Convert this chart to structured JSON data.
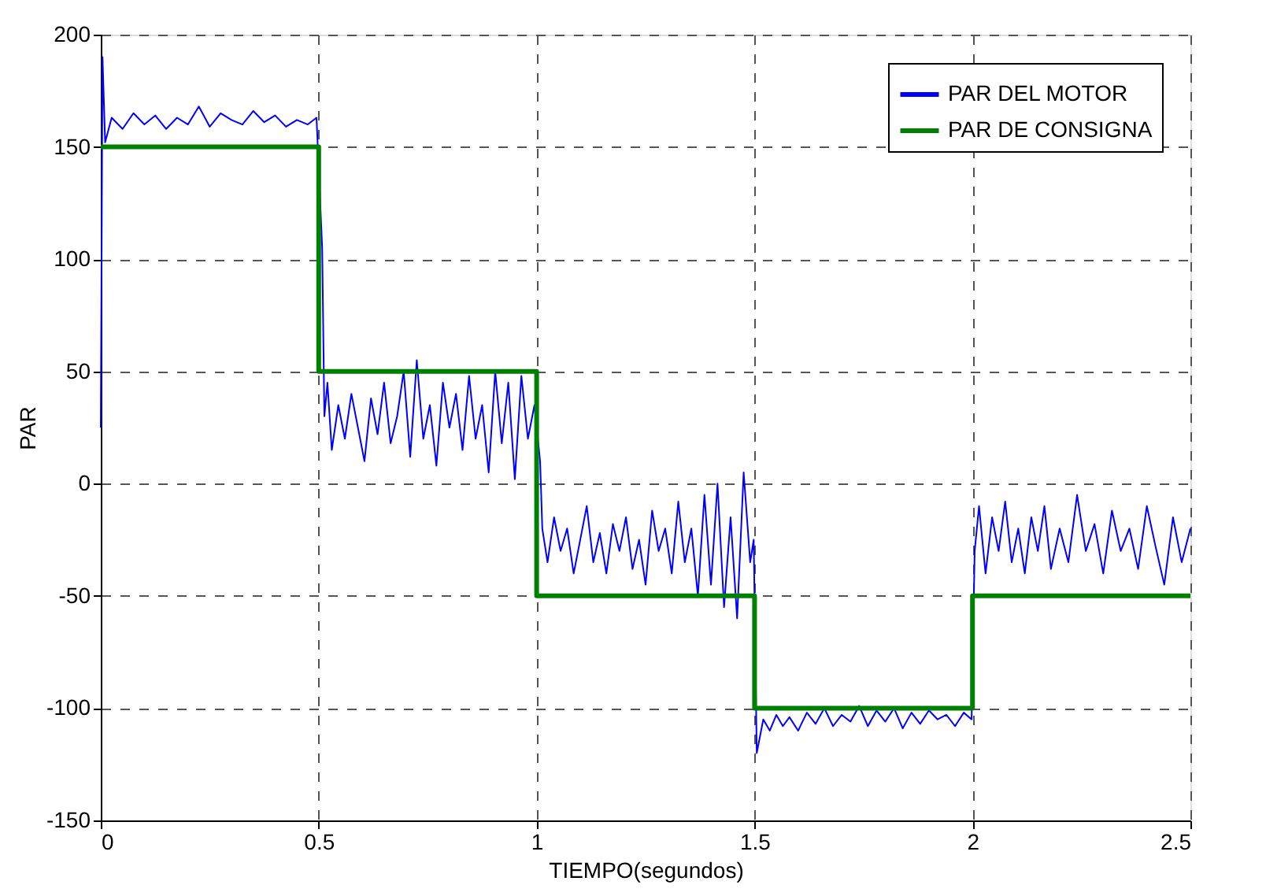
{
  "chart_data": {
    "type": "line",
    "xlabel": "TIEMPO(segundos)",
    "ylabel": "PAR",
    "xlim": [
      0,
      2.5
    ],
    "xticks": [
      0,
      0.5,
      1,
      1.5,
      2,
      2.5
    ],
    "ylim": [
      -150,
      200
    ],
    "yticks": [
      -150,
      -100,
      -50,
      0,
      50,
      100,
      150,
      200
    ],
    "grid": true,
    "legend": "top right",
    "series": [
      {
        "name": "PAR DEL MOTOR",
        "color": "#0000ff",
        "x": [
          0,
          0.004,
          0.01,
          0.025,
          0.05,
          0.075,
          0.1,
          0.125,
          0.15,
          0.175,
          0.2,
          0.225,
          0.25,
          0.275,
          0.3,
          0.325,
          0.35,
          0.375,
          0.4,
          0.425,
          0.45,
          0.475,
          0.495,
          0.508,
          0.513,
          0.52,
          0.53,
          0.545,
          0.56,
          0.575,
          0.59,
          0.605,
          0.62,
          0.635,
          0.65,
          0.665,
          0.68,
          0.695,
          0.71,
          0.725,
          0.74,
          0.755,
          0.77,
          0.785,
          0.8,
          0.815,
          0.83,
          0.845,
          0.86,
          0.875,
          0.89,
          0.905,
          0.92,
          0.935,
          0.95,
          0.965,
          0.98,
          0.995,
          1.008,
          1.013,
          1.025,
          1.04,
          1.055,
          1.07,
          1.085,
          1.1,
          1.115,
          1.13,
          1.145,
          1.16,
          1.175,
          1.19,
          1.205,
          1.22,
          1.235,
          1.25,
          1.265,
          1.28,
          1.295,
          1.31,
          1.325,
          1.34,
          1.355,
          1.37,
          1.385,
          1.4,
          1.415,
          1.43,
          1.445,
          1.46,
          1.475,
          1.49,
          1.498,
          1.505,
          1.52,
          1.535,
          1.55,
          1.565,
          1.58,
          1.6,
          1.62,
          1.64,
          1.66,
          1.68,
          1.7,
          1.72,
          1.74,
          1.76,
          1.78,
          1.8,
          1.82,
          1.84,
          1.86,
          1.88,
          1.9,
          1.92,
          1.94,
          1.96,
          1.98,
          1.998,
          2.005,
          2.015,
          2.03,
          2.045,
          2.06,
          2.075,
          2.09,
          2.105,
          2.12,
          2.135,
          2.15,
          2.165,
          2.18,
          2.2,
          2.22,
          2.24,
          2.26,
          2.28,
          2.3,
          2.32,
          2.34,
          2.36,
          2.38,
          2.4,
          2.42,
          2.44,
          2.46,
          2.48,
          2.5
        ],
        "values": [
          25,
          190,
          152,
          163,
          158,
          165,
          160,
          164,
          158,
          163,
          160,
          168,
          159,
          165,
          162,
          160,
          166,
          161,
          164,
          159,
          162,
          160,
          163,
          105,
          30,
          45,
          15,
          35,
          20,
          40,
          25,
          10,
          38,
          22,
          45,
          18,
          30,
          50,
          12,
          55,
          20,
          35,
          8,
          45,
          25,
          40,
          15,
          48,
          20,
          35,
          5,
          50,
          18,
          45,
          2,
          48,
          20,
          35,
          10,
          -20,
          -35,
          -15,
          -30,
          -20,
          -40,
          -25,
          -10,
          -35,
          -22,
          -40,
          -18,
          -30,
          -15,
          -38,
          -25,
          -45,
          -12,
          -30,
          -20,
          -40,
          -8,
          -35,
          -20,
          -50,
          -5,
          -45,
          0,
          -55,
          -15,
          -60,
          5,
          -35,
          -25,
          -120,
          -105,
          -110,
          -103,
          -108,
          -104,
          -110,
          -102,
          -107,
          -100,
          -108,
          -103,
          -106,
          -99,
          -108,
          -101,
          -106,
          -100,
          -109,
          -102,
          -107,
          -101,
          -105,
          -103,
          -108,
          -102,
          -105,
          -30,
          -10,
          -40,
          -15,
          -30,
          -8,
          -35,
          -20,
          -40,
          -15,
          -30,
          -10,
          -38,
          -20,
          -35,
          -5,
          -30,
          -18,
          -40,
          -12,
          -30,
          -20,
          -38,
          -10,
          -28,
          -45,
          -15,
          -35,
          -20
        ]
      },
      {
        "name": "PAR DE CONSIGNA",
        "color": "#008000",
        "x": [
          0,
          0.5,
          0.5,
          1,
          1,
          1.5,
          1.5,
          2,
          2,
          2.5
        ],
        "values": [
          150,
          150,
          50,
          50,
          -50,
          -50,
          -100,
          -100,
          -50,
          -50
        ]
      }
    ]
  }
}
